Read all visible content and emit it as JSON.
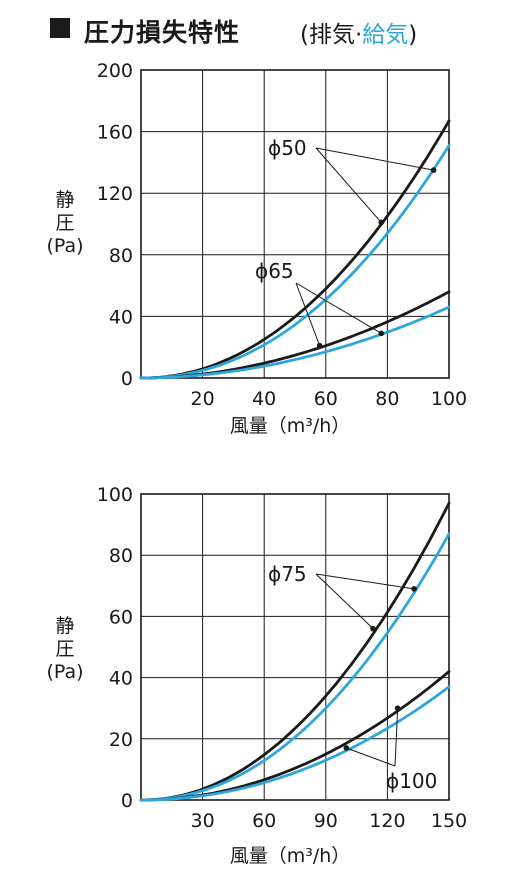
{
  "header": {
    "title": "圧力損失特性",
    "paren_open": "(",
    "exhaust": "排気",
    "separator": "·",
    "supply": "給気",
    "paren_close": ")"
  },
  "colors": {
    "exhaust": "#1a1a1a",
    "supply": "#2ea6dc",
    "grid": "#1a1a1a"
  },
  "chart_data": [
    {
      "type": "line",
      "ylabel_line1": "静",
      "ylabel_line2": "圧",
      "ylabel_unit": "(Pa)",
      "xlabel": "風量（m³/h）",
      "xlim": [
        0,
        100
      ],
      "ylim": [
        0,
        200
      ],
      "xticks": [
        20,
        40,
        60,
        80,
        100
      ],
      "yticks": [
        0,
        40,
        80,
        120,
        160,
        200
      ],
      "ytick_labels": [
        "0",
        "40",
        "80",
        "120",
        "160",
        "200"
      ],
      "xtick_labels": [
        "20",
        "40",
        "60",
        "80",
        "100"
      ],
      "series": [
        {
          "name": "ϕ50",
          "color": "exhaust",
          "x": [
            0,
            20,
            40,
            60,
            80,
            100
          ],
          "y": [
            0,
            8,
            28,
            58,
            103,
            167
          ]
        },
        {
          "name": "ϕ50",
          "color": "supply",
          "x": [
            0,
            20,
            40,
            60,
            80,
            100
          ],
          "y": [
            0,
            7,
            24,
            51,
            94,
            151
          ]
        },
        {
          "name": "ϕ65",
          "color": "exhaust",
          "x": [
            0,
            20,
            40,
            60,
            80,
            100
          ],
          "y": [
            0,
            3,
            10,
            21,
            35,
            56
          ]
        },
        {
          "name": "ϕ65",
          "color": "supply",
          "x": [
            0,
            20,
            40,
            60,
            80,
            100
          ],
          "y": [
            0,
            2,
            8,
            17,
            29,
            46
          ]
        }
      ],
      "annotations": [
        {
          "text": "ϕ50",
          "points": [
            [
              78,
              101
            ],
            [
              95,
              135
            ]
          ]
        },
        {
          "text": "ϕ65",
          "points": [
            [
              58,
              21
            ],
            [
              78,
              29
            ]
          ]
        }
      ]
    },
    {
      "type": "line",
      "ylabel_line1": "静",
      "ylabel_line2": "圧",
      "ylabel_unit": "(Pa)",
      "xlabel": "風量（m³/h）",
      "xlim": [
        0,
        150
      ],
      "ylim": [
        0,
        100
      ],
      "xticks": [
        30,
        60,
        90,
        120,
        150
      ],
      "yticks": [
        0,
        20,
        40,
        60,
        80,
        100
      ],
      "ytick_labels": [
        "0",
        "20",
        "40",
        "60",
        "80",
        "100"
      ],
      "xtick_labels": [
        "30",
        "60",
        "90",
        "120",
        "150"
      ],
      "series": [
        {
          "name": "ϕ75",
          "color": "exhaust",
          "x": [
            0,
            30,
            60,
            90,
            120,
            150
          ],
          "y": [
            0,
            4,
            15,
            34,
            62,
            97
          ]
        },
        {
          "name": "ϕ75",
          "color": "supply",
          "x": [
            0,
            30,
            60,
            90,
            120,
            150
          ],
          "y": [
            0,
            3,
            13,
            30,
            55,
            87
          ]
        },
        {
          "name": "ϕ100",
          "color": "exhaust",
          "x": [
            0,
            30,
            60,
            90,
            120,
            150
          ],
          "y": [
            0,
            2,
            7,
            15,
            26,
            42
          ]
        },
        {
          "name": "ϕ100",
          "color": "supply",
          "x": [
            0,
            30,
            60,
            90,
            120,
            150
          ],
          "y": [
            0,
            2,
            6,
            13,
            23,
            37
          ]
        }
      ],
      "annotations": [
        {
          "text": "ϕ75",
          "points": [
            [
              113,
              56
            ],
            [
              133,
              69
            ]
          ]
        },
        {
          "text": "ϕ100",
          "points": [
            [
              100,
              17
            ],
            [
              125,
              30
            ]
          ]
        }
      ]
    }
  ]
}
